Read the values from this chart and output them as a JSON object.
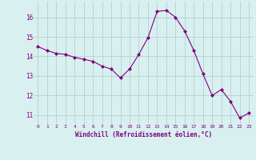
{
  "x": [
    0,
    1,
    2,
    3,
    4,
    5,
    6,
    7,
    8,
    9,
    10,
    11,
    12,
    13,
    14,
    15,
    16,
    17,
    18,
    19,
    20,
    21,
    22,
    23
  ],
  "y": [
    14.5,
    14.3,
    14.15,
    14.1,
    13.95,
    13.85,
    13.75,
    13.5,
    13.35,
    12.9,
    13.35,
    14.1,
    14.95,
    16.3,
    16.35,
    16.0,
    15.3,
    14.3,
    13.1,
    12.0,
    12.3,
    11.7,
    10.85,
    11.1
  ],
  "line_color": "#800080",
  "marker": "D",
  "marker_size": 2,
  "bg_color": "#d8f0f0",
  "grid_color": "#b0c8c8",
  "xlabel": "Windchill (Refroidissement éolien,°C)",
  "xlabel_color": "#800080",
  "tick_color": "#800080",
  "ylim": [
    10.5,
    16.8
  ],
  "yticks": [
    11,
    12,
    13,
    14,
    15,
    16
  ],
  "xticks": [
    0,
    1,
    2,
    3,
    4,
    5,
    6,
    7,
    8,
    9,
    10,
    11,
    12,
    13,
    14,
    15,
    16,
    17,
    18,
    19,
    20,
    21,
    22,
    23
  ],
  "xlim": [
    -0.5,
    23.5
  ]
}
